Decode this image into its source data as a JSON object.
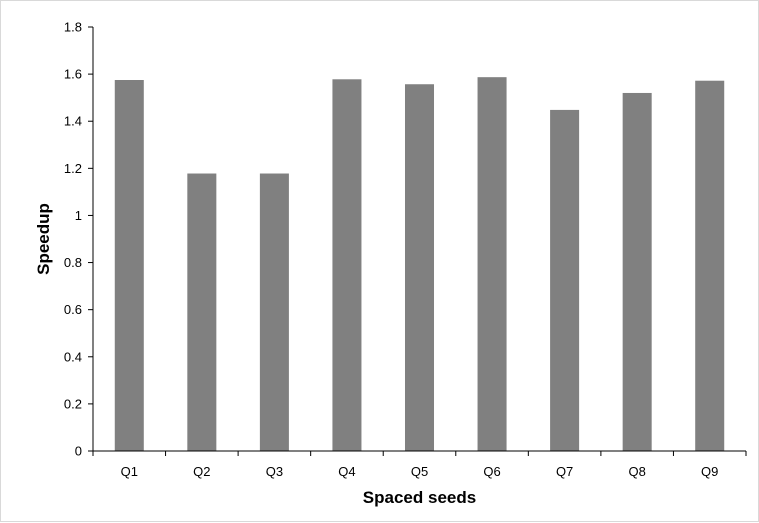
{
  "chart_data": {
    "type": "bar",
    "title": "",
    "xlabel": "Spaced seeds",
    "ylabel": "Speedup",
    "categories": [
      "Q1",
      "Q2",
      "Q3",
      "Q4",
      "Q5",
      "Q6",
      "Q7",
      "Q8",
      "Q9"
    ],
    "values": [
      1.575,
      1.178,
      1.178,
      1.578,
      1.557,
      1.587,
      1.448,
      1.52,
      1.572
    ],
    "ylim": [
      0,
      1.8
    ],
    "yticks": [
      "0",
      "0.2",
      "0.4",
      "0.6",
      "0.8",
      "1",
      "1.2",
      "1.4",
      "1.6",
      "1.8"
    ],
    "grid": false,
    "legend": "none",
    "bar_color": "#808080"
  }
}
